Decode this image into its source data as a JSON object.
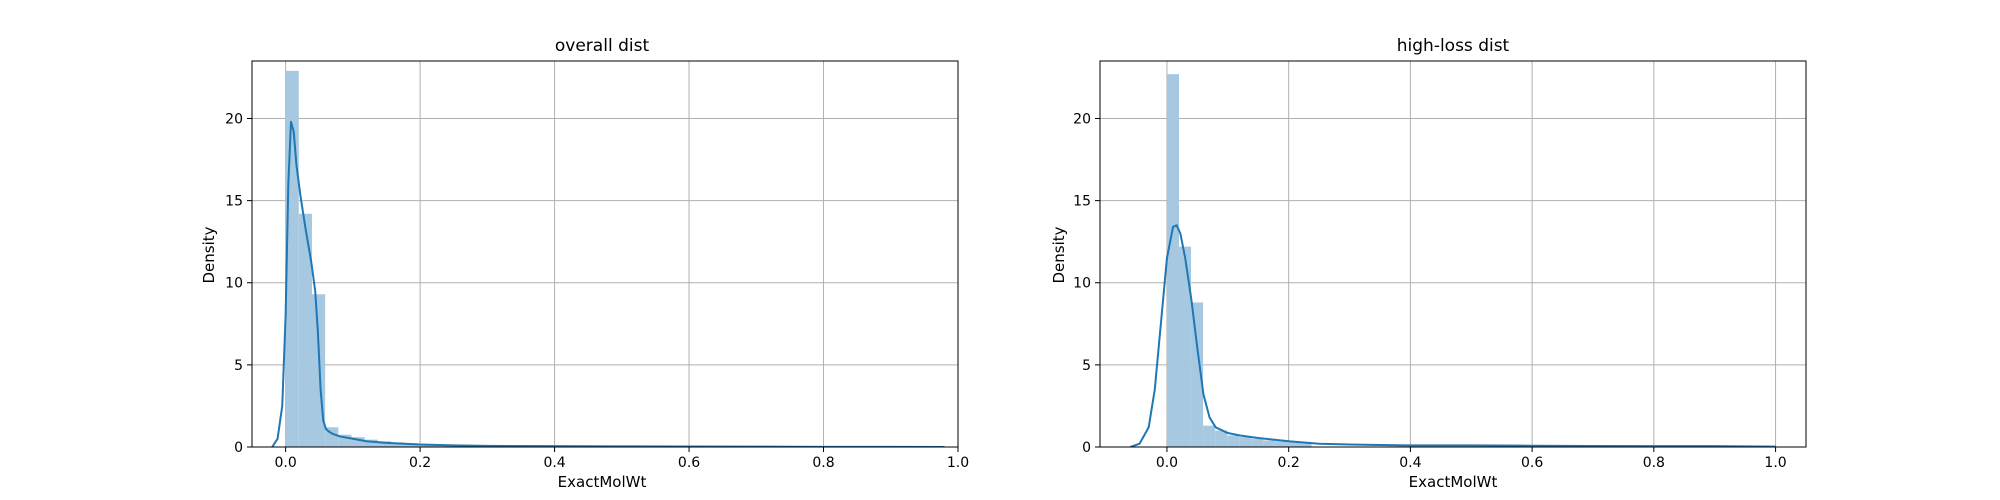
{
  "chart_data": [
    {
      "type": "bar",
      "title": "overall dist",
      "xlabel": "ExactMolWt",
      "ylabel": "Density",
      "xlim": [
        -0.05,
        1.0
      ],
      "ylim": [
        0,
        23.5
      ],
      "grid": true,
      "xticks": [
        0.0,
        0.2,
        0.4,
        0.6,
        0.8,
        1.0
      ],
      "xtick_labels": [
        "0.0",
        "0.2",
        "0.4",
        "0.6",
        "0.8",
        "1.0"
      ],
      "yticks": [
        0,
        5,
        10,
        15,
        20
      ],
      "ytick_labels": [
        "0",
        "5",
        "10",
        "15",
        "20"
      ],
      "bar_color": "#a6c9e1",
      "line_color": "#1f77b4",
      "histogram": {
        "bin_width": 0.0196,
        "bins": [
          {
            "x0": 0.0,
            "value": 22.9
          },
          {
            "x0": 0.0196,
            "value": 14.2
          },
          {
            "x0": 0.0392,
            "value": 9.3
          },
          {
            "x0": 0.0588,
            "value": 1.2
          },
          {
            "x0": 0.0784,
            "value": 0.75
          },
          {
            "x0": 0.098,
            "value": 0.6
          },
          {
            "x0": 0.1176,
            "value": 0.45
          },
          {
            "x0": 0.1372,
            "value": 0.35
          },
          {
            "x0": 0.1568,
            "value": 0.28
          },
          {
            "x0": 0.1764,
            "value": 0.22
          },
          {
            "x0": 0.196,
            "value": 0.18
          },
          {
            "x0": 0.2156,
            "value": 0.14
          },
          {
            "x0": 0.2352,
            "value": 0.11
          },
          {
            "x0": 0.2548,
            "value": 0.09
          },
          {
            "x0": 0.2744,
            "value": 0.07
          },
          {
            "x0": 0.294,
            "value": 0.06
          },
          {
            "x0": 0.3136,
            "value": 0.05
          },
          {
            "x0": 0.3332,
            "value": 0.05
          },
          {
            "x0": 0.3528,
            "value": 0.04
          },
          {
            "x0": 0.3724,
            "value": 0.04
          }
        ]
      },
      "kde": {
        "x": [
          -0.02,
          -0.012,
          -0.005,
          0.0,
          0.004,
          0.008,
          0.012,
          0.016,
          0.022,
          0.03,
          0.038,
          0.044,
          0.048,
          0.052,
          0.056,
          0.06,
          0.064,
          0.07,
          0.08,
          0.1,
          0.12,
          0.15,
          0.2,
          0.25,
          0.3,
          0.4,
          0.5,
          0.6,
          0.7,
          0.8,
          0.9,
          0.98
        ],
        "y": [
          0.0,
          0.5,
          2.5,
          8.0,
          16.0,
          19.8,
          19.2,
          17.2,
          15.3,
          13.2,
          11.3,
          9.5,
          7.0,
          3.5,
          1.6,
          1.1,
          0.95,
          0.8,
          0.65,
          0.5,
          0.35,
          0.25,
          0.15,
          0.1,
          0.07,
          0.05,
          0.04,
          0.03,
          0.02,
          0.01,
          0.01,
          0.0
        ]
      }
    },
    {
      "type": "bar",
      "title": "high-loss dist",
      "xlabel": "ExactMolWt",
      "ylabel": "Density",
      "xlim": [
        -0.11,
        1.05
      ],
      "ylim": [
        0,
        23.5
      ],
      "grid": true,
      "xticks": [
        0.0,
        0.2,
        0.4,
        0.6,
        0.8,
        1.0
      ],
      "xtick_labels": [
        "0.0",
        "0.2",
        "0.4",
        "0.6",
        "0.8",
        "1.0"
      ],
      "yticks": [
        0,
        5,
        10,
        15,
        20
      ],
      "ytick_labels": [
        "0",
        "5",
        "10",
        "15",
        "20"
      ],
      "bar_color": "#a6c9e1",
      "line_color": "#1f77b4",
      "histogram": {
        "bin_width": 0.0198,
        "bins": [
          {
            "x0": 0.0,
            "value": 22.7
          },
          {
            "x0": 0.0198,
            "value": 12.2
          },
          {
            "x0": 0.0396,
            "value": 8.8
          },
          {
            "x0": 0.0594,
            "value": 1.3
          },
          {
            "x0": 0.0792,
            "value": 1.0
          },
          {
            "x0": 0.099,
            "value": 0.7
          },
          {
            "x0": 0.1188,
            "value": 0.6
          },
          {
            "x0": 0.1386,
            "value": 0.5
          },
          {
            "x0": 0.1584,
            "value": 0.4
          },
          {
            "x0": 0.1782,
            "value": 0.35
          },
          {
            "x0": 0.198,
            "value": 0.3
          },
          {
            "x0": 0.2178,
            "value": 0.25
          }
        ]
      },
      "kde": {
        "x": [
          -0.06,
          -0.045,
          -0.03,
          -0.02,
          -0.01,
          0.0,
          0.01,
          0.016,
          0.022,
          0.03,
          0.04,
          0.05,
          0.06,
          0.07,
          0.08,
          0.1,
          0.12,
          0.15,
          0.2,
          0.25,
          0.3,
          0.35,
          0.4,
          0.5,
          0.6,
          0.7,
          0.8,
          0.9,
          1.0
        ],
        "y": [
          0.0,
          0.2,
          1.2,
          3.5,
          7.5,
          11.5,
          13.4,
          13.5,
          13.0,
          11.5,
          9.0,
          6.0,
          3.2,
          1.8,
          1.2,
          0.85,
          0.7,
          0.55,
          0.35,
          0.2,
          0.15,
          0.12,
          0.1,
          0.1,
          0.08,
          0.06,
          0.05,
          0.05,
          0.02
        ]
      }
    }
  ]
}
